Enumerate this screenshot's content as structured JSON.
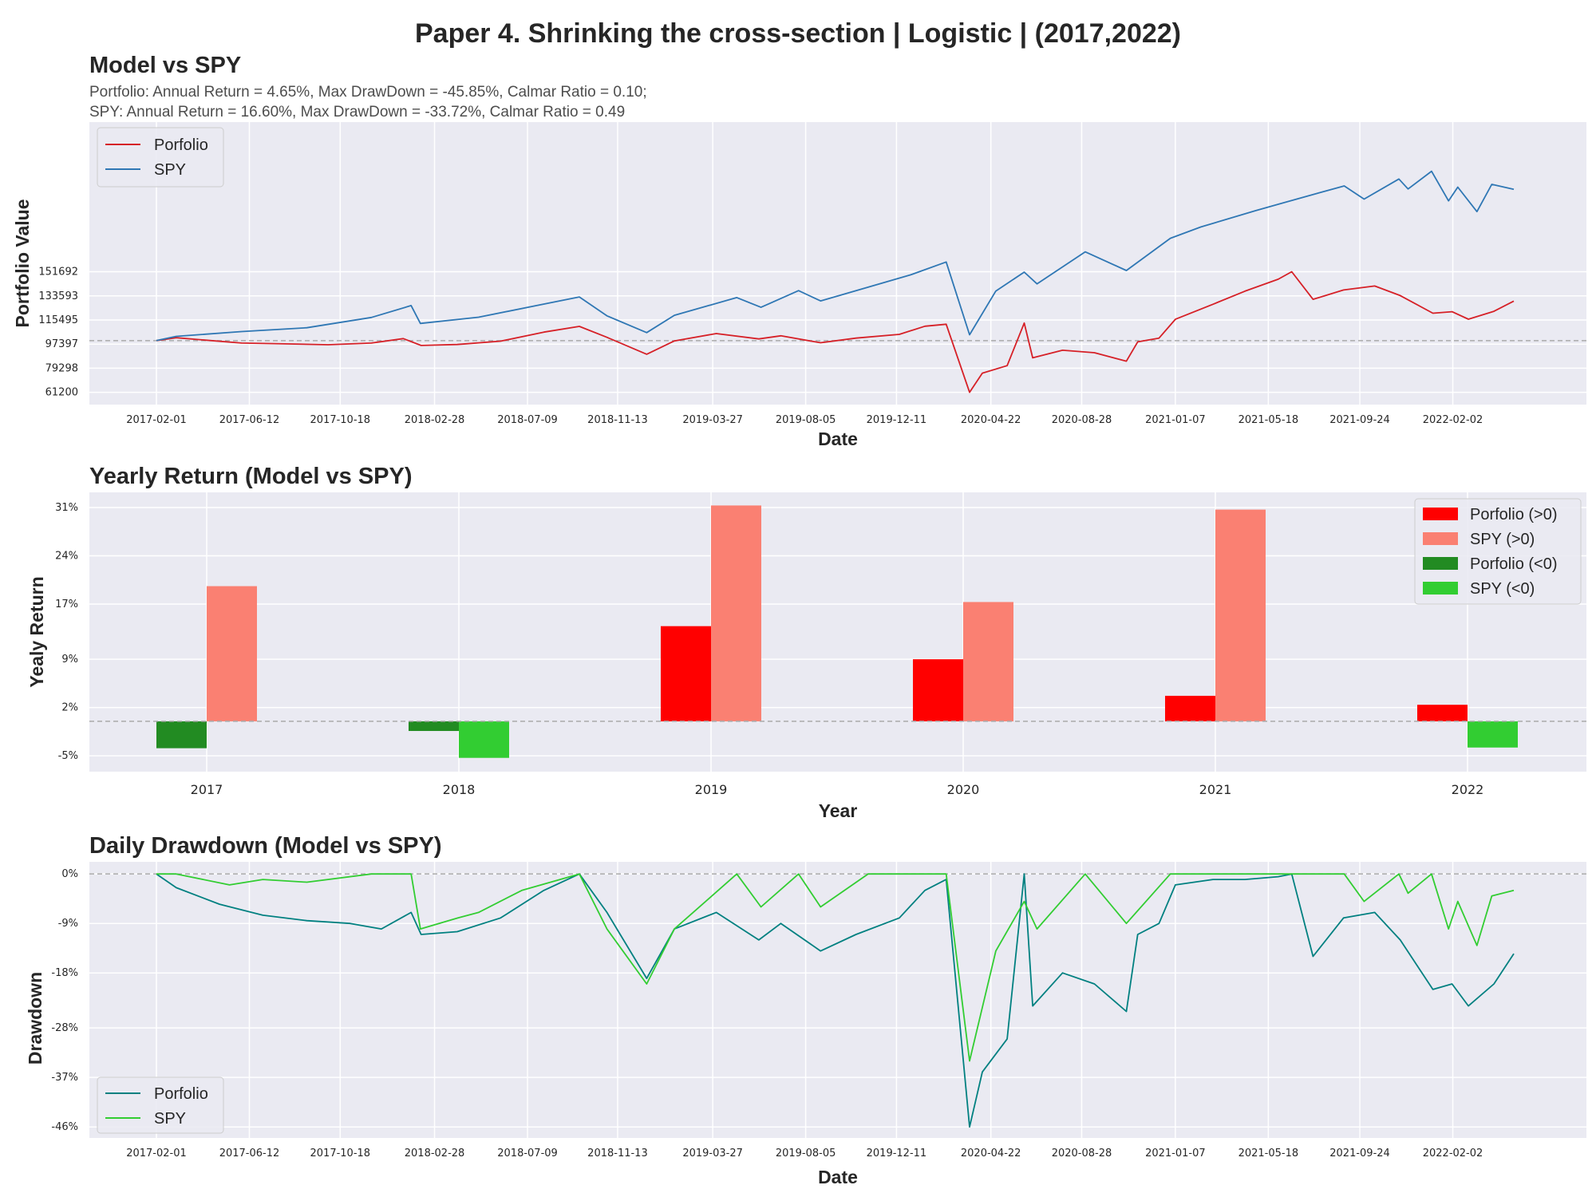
{
  "title": "Paper 4. Shrinking the cross-section | Logistic | (2017,2022)",
  "colors": {
    "portfolio_line": "#d62027",
    "spy_line": "#2f77b4",
    "portfolio_pos": "#ff0000",
    "spy_pos": "#fa8072",
    "portfolio_neg": "#228b22",
    "spy_neg": "#32cd32",
    "dd_portfolio": "#008080",
    "dd_spy": "#32cd32"
  },
  "chart_data": [
    {
      "type": "line",
      "title": "Model vs SPY",
      "subtitle_lines": [
        "Portfolio: Annual Return = 4.65%, Max DrawDown = -45.85%, Calmar Ratio = 0.10;",
        "SPY: Annual Return = 16.60%, Max DrawDown = -33.72%, Calmar Ratio = 0.49"
      ],
      "xlabel": "Date",
      "ylabel": "Portfolio Value",
      "x_ticks": [
        "2017-02-01",
        "2017-06-12",
        "2017-10-18",
        "2018-02-28",
        "2018-07-09",
        "2018-11-13",
        "2019-03-27",
        "2019-08-05",
        "2019-12-11",
        "2020-04-22",
        "2020-08-28",
        "2021-01-07",
        "2021-05-18",
        "2021-09-24",
        "2022-02-02"
      ],
      "y_ticks": [
        "61200",
        "79298",
        "97397",
        "115495",
        "133593",
        "151692"
      ],
      "ylim": [
        52000,
        264000
      ],
      "reference_line": 100000,
      "legend": {
        "position": "upper-left",
        "entries": [
          "Porfolio",
          "SPY"
        ]
      },
      "series": [
        {
          "name": "Porfolio",
          "points": [
            [
              "2017-02-01",
              100000
            ],
            [
              "2017-03-01",
              102200
            ],
            [
              "2017-04-01",
              100800
            ],
            [
              "2017-06-01",
              98200
            ],
            [
              "2017-08-01",
              97600
            ],
            [
              "2017-10-01",
              96900
            ],
            [
              "2017-12-01",
              98200
            ],
            [
              "2018-01-15",
              101500
            ],
            [
              "2018-02-09",
              96400
            ],
            [
              "2018-04-01",
              97100
            ],
            [
              "2018-06-01",
              99600
            ],
            [
              "2018-08-01",
              106400
            ],
            [
              "2018-09-20",
              110700
            ],
            [
              "2018-10-29",
              102500
            ],
            [
              "2018-12-24",
              89800
            ],
            [
              "2019-02-01",
              99800
            ],
            [
              "2019-04-01",
              105300
            ],
            [
              "2019-05-31",
              101300
            ],
            [
              "2019-07-01",
              103600
            ],
            [
              "2019-08-26",
              98400
            ],
            [
              "2019-10-15",
              101900
            ],
            [
              "2019-12-15",
              104700
            ],
            [
              "2020-01-20",
              110800
            ],
            [
              "2020-02-19",
              112300
            ],
            [
              "2020-03-23",
              61200
            ],
            [
              "2020-04-10",
              75600
            ],
            [
              "2020-05-15",
              81200
            ],
            [
              "2020-06-08",
              113200
            ],
            [
              "2020-06-20",
              87100
            ],
            [
              "2020-08-01",
              92800
            ],
            [
              "2020-09-15",
              90900
            ],
            [
              "2020-10-30",
              84600
            ],
            [
              "2020-11-15",
              99100
            ],
            [
              "2020-12-15",
              101900
            ],
            [
              "2021-01-07",
              116000
            ],
            [
              "2021-03-01",
              127300
            ],
            [
              "2021-04-15",
              137100
            ],
            [
              "2021-06-01",
              146100
            ],
            [
              "2021-06-20",
              151700
            ],
            [
              "2021-07-20",
              131000
            ],
            [
              "2021-09-01",
              138000
            ],
            [
              "2021-10-15",
              141000
            ],
            [
              "2021-11-20",
              133800
            ],
            [
              "2022-01-05",
              120600
            ],
            [
              "2022-02-01",
              121700
            ],
            [
              "2022-02-24",
              116100
            ],
            [
              "2022-04-01",
              122000
            ],
            [
              "2022-04-29",
              129700
            ]
          ]
        },
        {
          "name": "SPY",
          "points": [
            [
              "2017-02-01",
              100000
            ],
            [
              "2017-03-01",
              103200
            ],
            [
              "2017-06-01",
              106800
            ],
            [
              "2017-09-01",
              109700
            ],
            [
              "2017-12-01",
              117400
            ],
            [
              "2018-01-26",
              126300
            ],
            [
              "2018-02-08",
              112900
            ],
            [
              "2018-05-01",
              117600
            ],
            [
              "2018-09-20",
              132800
            ],
            [
              "2018-10-29",
              118600
            ],
            [
              "2018-12-24",
              106000
            ],
            [
              "2019-02-01",
              119000
            ],
            [
              "2019-04-30",
              132300
            ],
            [
              "2019-06-03",
              125000
            ],
            [
              "2019-07-26",
              137500
            ],
            [
              "2019-08-26",
              129800
            ],
            [
              "2019-11-01",
              140100
            ],
            [
              "2019-12-31",
              149400
            ],
            [
              "2020-02-19",
              159000
            ],
            [
              "2020-03-23",
              104400
            ],
            [
              "2020-04-29",
              137200
            ],
            [
              "2020-06-08",
              151400
            ],
            [
              "2020-06-26",
              142600
            ],
            [
              "2020-09-02",
              166600
            ],
            [
              "2020-10-30",
              152600
            ],
            [
              "2020-12-31",
              176800
            ],
            [
              "2021-02-12",
              185300
            ],
            [
              "2021-04-30",
              197500
            ],
            [
              "2021-06-30",
              206700
            ],
            [
              "2021-09-02",
              216100
            ],
            [
              "2021-09-30",
              206200
            ],
            [
              "2021-11-18",
              221300
            ],
            [
              "2021-12-01",
              213800
            ],
            [
              "2022-01-03",
              227100
            ],
            [
              "2022-01-27",
              204900
            ],
            [
              "2022-02-09",
              215200
            ],
            [
              "2022-03-08",
              196800
            ],
            [
              "2022-03-29",
              217300
            ],
            [
              "2022-04-29",
              213500
            ]
          ]
        }
      ]
    },
    {
      "type": "bar",
      "title": "Yearly Return (Model vs SPY)",
      "xlabel": "Year",
      "ylabel": "Yealy Return",
      "categories": [
        "2017",
        "2018",
        "2019",
        "2020",
        "2021",
        "2022"
      ],
      "y_ticks": [
        "-5%",
        "2%",
        "9%",
        "17%",
        "24%",
        "31%"
      ],
      "y_tick_values": [
        -5,
        2,
        9,
        17,
        24,
        31
      ],
      "ylim": [
        -7.3,
        33.2
      ],
      "legend": {
        "position": "upper-right",
        "entries": [
          "Porfolio (>0)",
          "SPY (>0)",
          "Porfolio (<0)",
          "SPY (<0)"
        ]
      },
      "series": [
        {
          "name": "Porfolio",
          "values": [
            -3.9,
            -1.4,
            13.8,
            9.0,
            3.7,
            2.4
          ]
        },
        {
          "name": "SPY",
          "values": [
            19.6,
            -5.3,
            31.3,
            17.3,
            30.7,
            -3.8
          ]
        }
      ]
    },
    {
      "type": "line",
      "title": "Daily Drawdown (Model vs SPY)",
      "xlabel": "Date",
      "ylabel": "Drawdown",
      "x_ticks": [
        "2017-02-01",
        "2017-06-12",
        "2017-10-18",
        "2018-02-28",
        "2018-07-09",
        "2018-11-13",
        "2019-03-27",
        "2019-08-05",
        "2019-12-11",
        "2020-04-22",
        "2020-08-28",
        "2021-01-07",
        "2021-05-18",
        "2021-09-24",
        "2022-02-02"
      ],
      "y_ticks": [
        "0%",
        "-9%",
        "-18%",
        "-28%",
        "-37%",
        "-46%"
      ],
      "y_tick_values": [
        0,
        -9,
        -18,
        -28,
        -37,
        -46
      ],
      "ylim": [
        -48,
        2.2
      ],
      "legend": {
        "position": "lower-left",
        "entries": [
          "Porfolio",
          "SPY"
        ]
      },
      "series": [
        {
          "name": "Porfolio",
          "points": [
            [
              "2017-02-01",
              0
            ],
            [
              "2017-03-01",
              -2.5
            ],
            [
              "2017-05-01",
              -5.5
            ],
            [
              "2017-07-01",
              -7.5
            ],
            [
              "2017-09-01",
              -8.5
            ],
            [
              "2017-11-01",
              -9
            ],
            [
              "2017-12-15",
              -10
            ],
            [
              "2018-01-26",
              -7
            ],
            [
              "2018-02-09",
              -11
            ],
            [
              "2018-04-01",
              -10.5
            ],
            [
              "2018-06-01",
              -8
            ],
            [
              "2018-08-01",
              -3
            ],
            [
              "2018-09-20",
              0
            ],
            [
              "2018-10-29",
              -7
            ],
            [
              "2018-12-24",
              -19
            ],
            [
              "2019-02-01",
              -10
            ],
            [
              "2019-04-01",
              -7
            ],
            [
              "2019-05-31",
              -12
            ],
            [
              "2019-07-01",
              -9
            ],
            [
              "2019-08-26",
              -14
            ],
            [
              "2019-10-15",
              -11
            ],
            [
              "2019-12-15",
              -8
            ],
            [
              "2020-01-20",
              -3
            ],
            [
              "2020-02-19",
              -1
            ],
            [
              "2020-03-23",
              -46
            ],
            [
              "2020-04-10",
              -36
            ],
            [
              "2020-05-15",
              -30
            ],
            [
              "2020-06-08",
              0
            ],
            [
              "2020-06-20",
              -24
            ],
            [
              "2020-08-01",
              -18
            ],
            [
              "2020-09-15",
              -20
            ],
            [
              "2020-10-30",
              -25
            ],
            [
              "2020-11-15",
              -11
            ],
            [
              "2020-12-15",
              -9
            ],
            [
              "2021-01-07",
              -2
            ],
            [
              "2021-03-01",
              -1
            ],
            [
              "2021-04-15",
              -1
            ],
            [
              "2021-06-01",
              -0.5
            ],
            [
              "2021-06-20",
              0
            ],
            [
              "2021-07-20",
              -15
            ],
            [
              "2021-09-01",
              -8
            ],
            [
              "2021-10-15",
              -7
            ],
            [
              "2021-11-20",
              -12
            ],
            [
              "2022-01-05",
              -21
            ],
            [
              "2022-02-01",
              -20
            ],
            [
              "2022-02-24",
              -24
            ],
            [
              "2022-04-01",
              -20
            ],
            [
              "2022-04-29",
              -14.5
            ]
          ]
        },
        {
          "name": "SPY",
          "points": [
            [
              "2017-02-01",
              0
            ],
            [
              "2017-03-01",
              0
            ],
            [
              "2017-05-15",
              -2
            ],
            [
              "2017-07-01",
              -1
            ],
            [
              "2017-09-01",
              -1.5
            ],
            [
              "2017-12-01",
              0
            ],
            [
              "2018-01-26",
              0
            ],
            [
              "2018-02-08",
              -10
            ],
            [
              "2018-04-02",
              -8
            ],
            [
              "2018-05-01",
              -7
            ],
            [
              "2018-07-01",
              -3
            ],
            [
              "2018-09-20",
              0
            ],
            [
              "2018-10-29",
              -10
            ],
            [
              "2018-12-24",
              -20
            ],
            [
              "2019-02-01",
              -10
            ],
            [
              "2019-04-30",
              0
            ],
            [
              "2019-06-03",
              -6
            ],
            [
              "2019-07-26",
              0
            ],
            [
              "2019-08-26",
              -6
            ],
            [
              "2019-11-01",
              0
            ],
            [
              "2019-12-31",
              0
            ],
            [
              "2020-02-19",
              0
            ],
            [
              "2020-03-23",
              -34
            ],
            [
              "2020-04-29",
              -14
            ],
            [
              "2020-06-08",
              -5
            ],
            [
              "2020-06-26",
              -10
            ],
            [
              "2020-09-02",
              0
            ],
            [
              "2020-10-30",
              -9
            ],
            [
              "2020-12-31",
              0
            ],
            [
              "2021-02-12",
              0
            ],
            [
              "2021-04-30",
              0
            ],
            [
              "2021-06-30",
              0
            ],
            [
              "2021-09-02",
              0
            ],
            [
              "2021-09-30",
              -5
            ],
            [
              "2021-11-18",
              0
            ],
            [
              "2021-12-01",
              -3.5
            ],
            [
              "2022-01-03",
              0
            ],
            [
              "2022-01-27",
              -10
            ],
            [
              "2022-02-09",
              -5
            ],
            [
              "2022-03-08",
              -13
            ],
            [
              "2022-03-29",
              -4
            ],
            [
              "2022-04-29",
              -3
            ]
          ]
        }
      ]
    }
  ]
}
